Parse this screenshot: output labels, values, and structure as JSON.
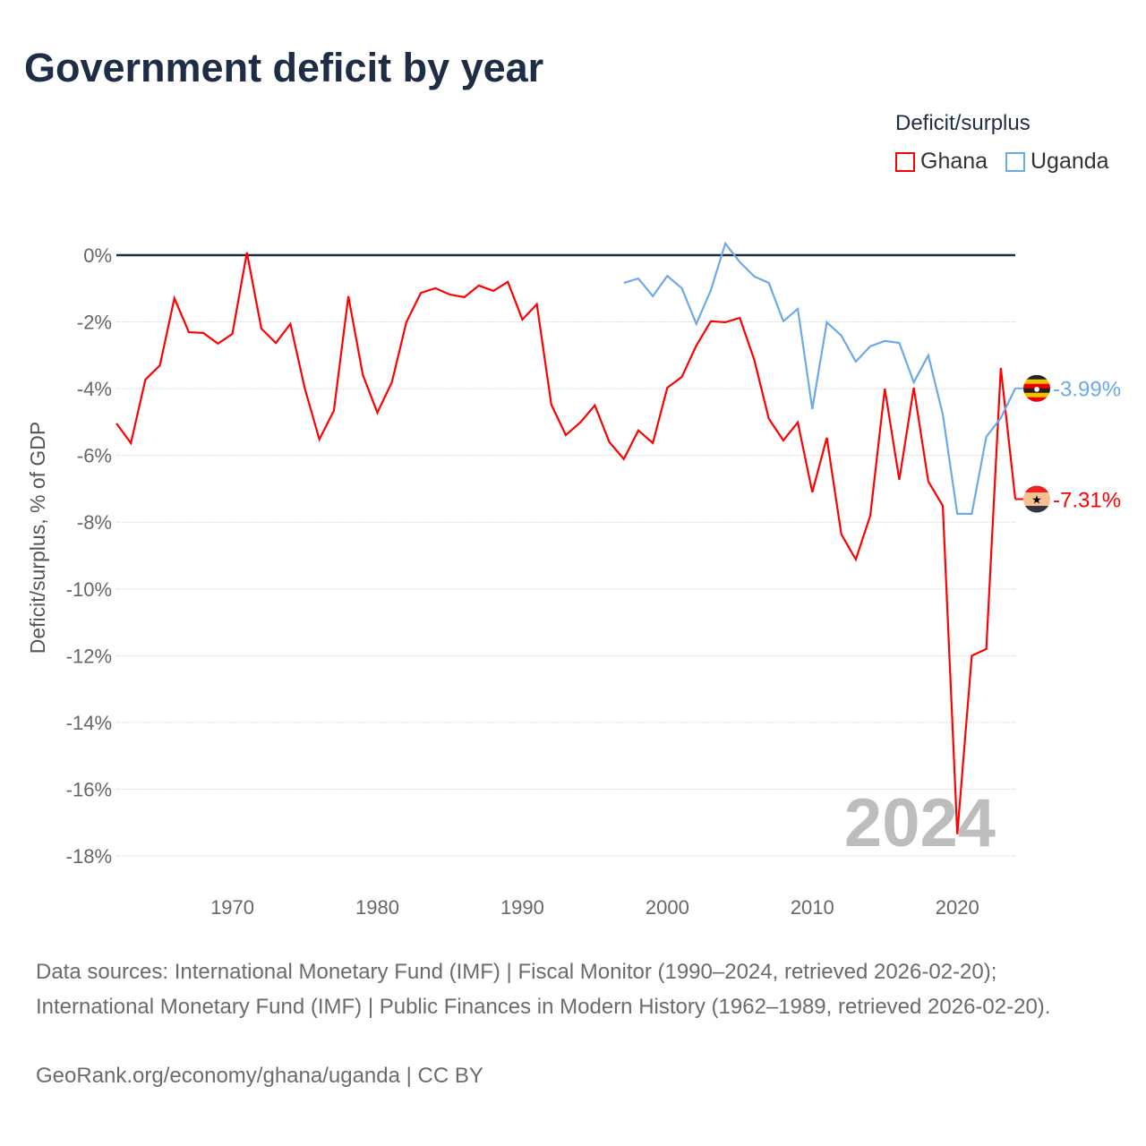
{
  "chart_data": {
    "type": "line",
    "title": "Government deficit by year",
    "ylabel": "Deficit/surplus, % of GDP",
    "xlabel": "",
    "legend_title": "Deficit/surplus",
    "legend_position": "top-right",
    "xlim": [
      1962,
      2024
    ],
    "ylim": [
      -18,
      0
    ],
    "x_ticks": [
      1970,
      1980,
      1990,
      2000,
      2010,
      2020
    ],
    "y_ticks": [
      0,
      -2,
      -4,
      -6,
      -8,
      -10,
      -12,
      -14,
      -16,
      -18
    ],
    "y_tick_labels": [
      "0%",
      "-2%",
      "-4%",
      "-6%",
      "-8%",
      "-10%",
      "-12%",
      "-14%",
      "-16%",
      "-18%"
    ],
    "grid": true,
    "watermark": "2024",
    "series": [
      {
        "name": "Ghana",
        "color": "#ff0000",
        "end_label": "-7.31%",
        "start_year": 1962,
        "values": [
          -5.04,
          -5.63,
          -3.73,
          -3.3,
          -1.29,
          -2.31,
          -2.33,
          -2.65,
          -2.36,
          0.08,
          -2.2,
          -2.63,
          -2.06,
          -4.0,
          -5.52,
          -4.66,
          -1.23,
          -3.59,
          -4.72,
          -3.81,
          -2.01,
          -1.13,
          -0.99,
          -1.18,
          -1.26,
          -0.91,
          -1.07,
          -0.8,
          -1.93,
          -1.47,
          -4.48,
          -5.39,
          -5.01,
          -4.5,
          -5.6,
          -6.11,
          -5.25,
          -5.63,
          -3.97,
          -3.65,
          -2.71,
          -1.98,
          -2.01,
          -1.88,
          -3.14,
          -4.9,
          -5.55,
          -5.01,
          -7.1,
          -5.47,
          -8.36,
          -9.12,
          -7.8,
          -4.0,
          -6.73,
          -3.97,
          -6.78,
          -7.51,
          -17.35,
          -12.0,
          -11.8,
          -3.38,
          -7.31
        ]
      },
      {
        "name": "Uganda",
        "color": "#6aaae8",
        "end_label": "-3.99%",
        "start_year": 1997,
        "values": [
          -0.83,
          -0.7,
          -1.23,
          -0.62,
          -0.99,
          -2.06,
          -1.05,
          0.35,
          -0.21,
          -0.64,
          -0.83,
          -1.98,
          -1.61,
          -4.61,
          -2.01,
          -2.41,
          -3.19,
          -2.73,
          -2.57,
          -2.63,
          -3.81,
          -3.0,
          -4.77,
          -7.75,
          -7.75,
          -5.44,
          -4.88,
          -3.99
        ]
      }
    ]
  },
  "footer": {
    "sources": "Data sources: International Monetary Fund (IMF) | Fiscal Monitor (1990–2024, retrieved 2026-02-20); International Monetary Fund (IMF) | Public Finances in Modern History (1962–1989, retrieved 2026-02-20).",
    "credit": "GeoRank.org/economy/ghana/uganda | CC BY"
  }
}
